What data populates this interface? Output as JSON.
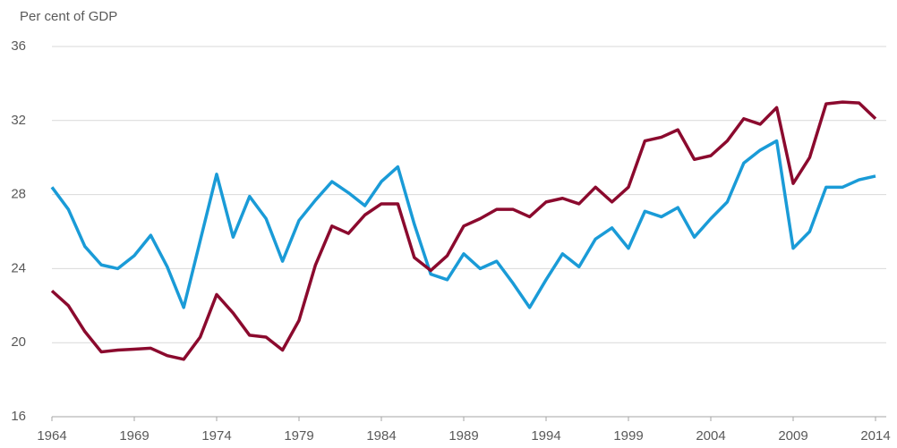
{
  "chart_data": {
    "type": "line",
    "y_label": "Per cent of GDP",
    "x": [
      1964,
      1965,
      1966,
      1967,
      1968,
      1969,
      1970,
      1971,
      1972,
      1973,
      1974,
      1975,
      1976,
      1977,
      1978,
      1979,
      1980,
      1981,
      1982,
      1983,
      1984,
      1985,
      1986,
      1987,
      1988,
      1989,
      1990,
      1991,
      1992,
      1993,
      1994,
      1995,
      1996,
      1997,
      1998,
      1999,
      2000,
      2001,
      2002,
      2003,
      2004,
      2005,
      2006,
      2007,
      2008,
      2009,
      2010,
      2011,
      2012,
      2013,
      2014
    ],
    "series": [
      {
        "color": "#1a9bd7",
        "values": [
          28.4,
          27.2,
          25.2,
          24.2,
          24.0,
          24.7,
          25.8,
          24.1,
          21.9,
          25.5,
          29.1,
          25.7,
          27.9,
          26.7,
          24.4,
          26.6,
          27.7,
          28.7,
          28.1,
          27.4,
          28.7,
          29.5,
          26.4,
          23.7,
          23.4,
          24.8,
          24.0,
          24.4,
          23.2,
          21.9,
          23.4,
          24.8,
          24.1,
          25.6,
          26.2,
          25.1,
          27.1,
          26.8,
          27.3,
          25.7,
          26.7,
          27.6,
          29.7,
          30.4,
          30.9,
          25.1,
          26.0,
          28.4,
          28.4,
          28.8,
          29.0
        ]
      },
      {
        "color": "#8b0a2e",
        "values": [
          22.8,
          22.0,
          20.6,
          19.5,
          19.6,
          19.65,
          19.7,
          19.3,
          19.1,
          20.3,
          22.6,
          21.6,
          20.4,
          20.3,
          19.6,
          21.2,
          24.2,
          26.3,
          25.9,
          26.9,
          27.5,
          27.5,
          24.6,
          23.9,
          24.7,
          26.3,
          26.7,
          27.2,
          27.2,
          26.8,
          27.6,
          27.8,
          27.5,
          28.4,
          27.6,
          28.4,
          30.9,
          31.1,
          31.5,
          29.9,
          30.1,
          30.9,
          32.1,
          31.8,
          32.7,
          28.6,
          30.0,
          32.9,
          33.0,
          32.95,
          32.1
        ]
      }
    ],
    "xlim": [
      1964,
      2014
    ],
    "xticks": [
      1964,
      1969,
      1974,
      1979,
      1984,
      1989,
      1994,
      1999,
      2004,
      2009,
      2014
    ],
    "ylim": [
      16,
      36
    ],
    "yticks": [
      16,
      20,
      24,
      28,
      32,
      36
    ],
    "grid": true
  }
}
